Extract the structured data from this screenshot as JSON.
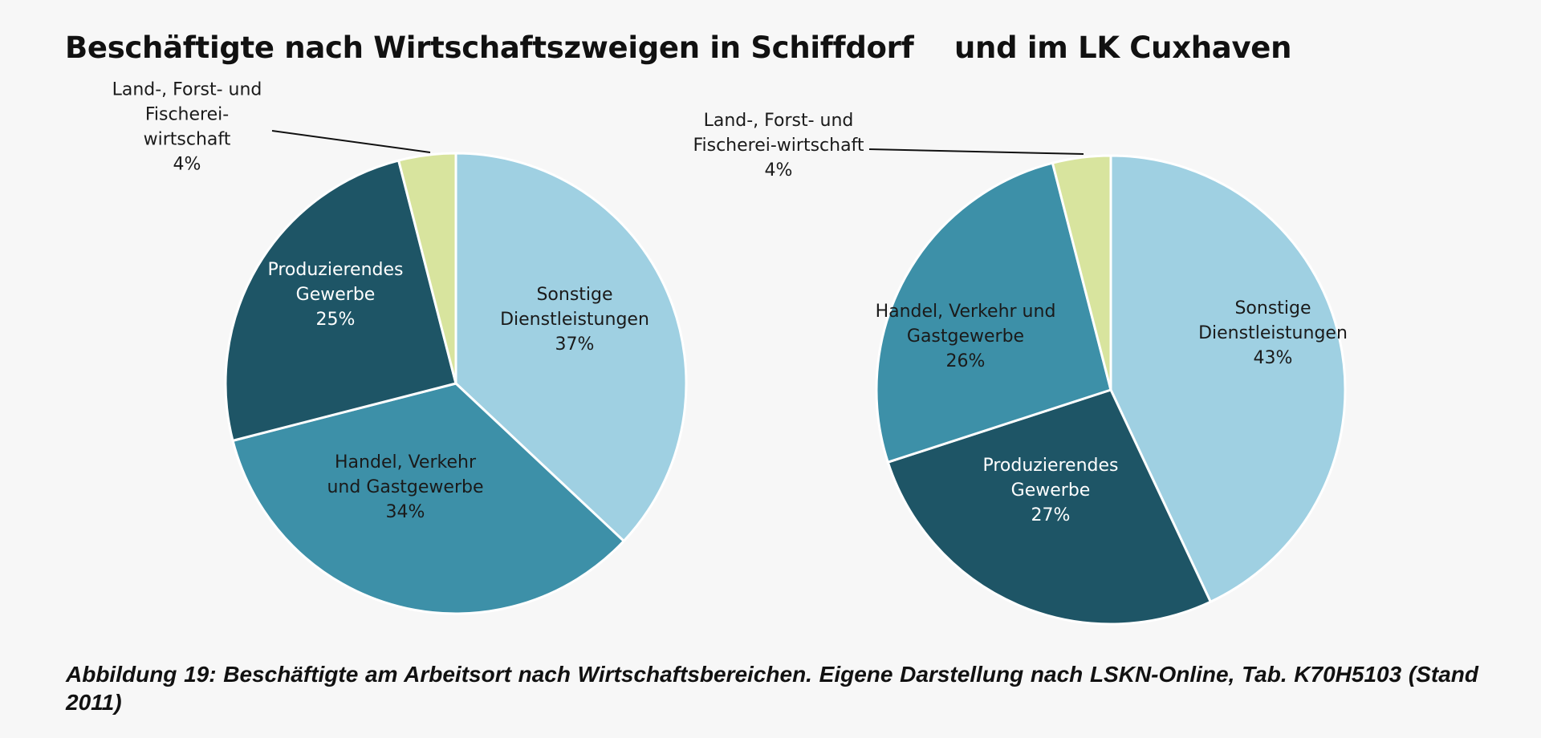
{
  "title_left": "Beschäftigte nach Wirtschaftszweigen in Schiffdorf",
  "title_right": "und im LK Cuxhaven",
  "caption": "Abbildung 19: Beschäftigte am Arbeitsort nach Wirtschaftsbereichen. Eigene Darstellung nach LSKN-Online, Tab. K70H5103 (Stand 2011)",
  "colors": {
    "sonstige": "#9fd0e2",
    "handel": "#3d90a8",
    "produzierendes": "#1e5566",
    "land": "#d8e49e"
  },
  "chart_data": [
    {
      "type": "pie",
      "title": "Schiffdorf",
      "slices": [
        {
          "key": "sonstige",
          "name": "Sonstige Dienstleistungen",
          "value": 37,
          "label_lines": [
            "Sonstige",
            "Dienstleistungen",
            "37%"
          ]
        },
        {
          "key": "handel",
          "name": "Handel, Verkehr und Gastgewerbe",
          "value": 34,
          "label_lines": [
            "Handel, Verkehr",
            "und Gastgewerbe",
            "34%"
          ]
        },
        {
          "key": "produzierendes",
          "name": "Produzierendes Gewerbe",
          "value": 25,
          "label_lines": [
            "Produzierendes",
            "Gewerbe",
            "25%"
          ]
        },
        {
          "key": "land",
          "name": "Land-, Forst- und Fischerei-wirtschaft",
          "value": 4,
          "label_lines": [
            "Land-, Forst- und",
            "Fischerei-",
            "wirtschaft",
            "4%"
          ]
        }
      ]
    },
    {
      "type": "pie",
      "title": "LK Cuxhaven",
      "slices": [
        {
          "key": "sonstige",
          "name": "Sonstige Dienstleistungen",
          "value": 43,
          "label_lines": [
            "Sonstige",
            "Dienstleistungen",
            "43%"
          ]
        },
        {
          "key": "produzierendes",
          "name": "Produzierendes Gewerbe",
          "value": 27,
          "label_lines": [
            "Produzierendes",
            "Gewerbe",
            "27%"
          ]
        },
        {
          "key": "handel",
          "name": "Handel, Verkehr und Gastgewerbe",
          "value": 26,
          "label_lines": [
            "Handel, Verkehr und",
            "Gastgewerbe",
            "26%"
          ]
        },
        {
          "key": "land",
          "name": "Land-, Forst- und Fischerei-wirtschaft",
          "value": 4,
          "label_lines": [
            "Land-, Forst- und",
            "Fischerei-wirtschaft",
            "4%"
          ]
        }
      ]
    }
  ]
}
